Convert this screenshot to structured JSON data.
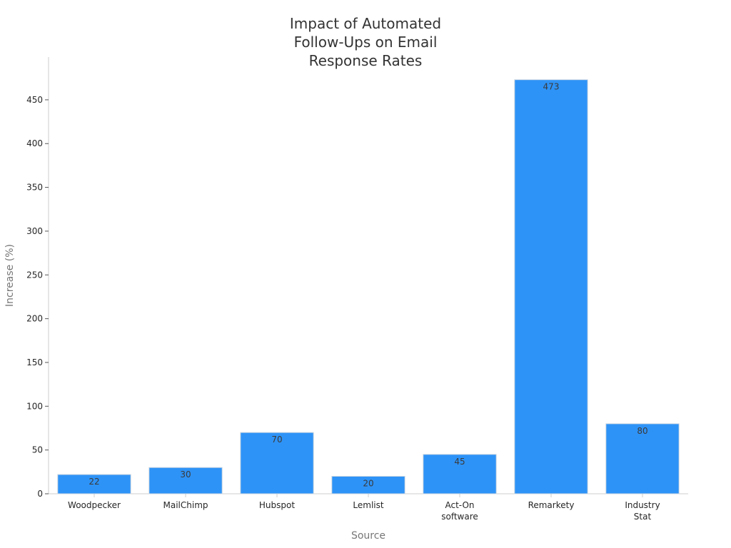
{
  "chart_data": {
    "type": "bar",
    "title_lines": [
      "Impact of Automated",
      "Follow-Ups on Email",
      "Response Rates"
    ],
    "xlabel": "Source",
    "ylabel": "Increase (%)",
    "categories": [
      [
        "Woodpecker"
      ],
      [
        "MailChimp"
      ],
      [
        "Hubspot"
      ],
      [
        "Lemlist"
      ],
      [
        "Act-On",
        "software"
      ],
      [
        "Remarkety"
      ],
      [
        "Industry",
        "Stat"
      ]
    ],
    "values": [
      22,
      30,
      70,
      20,
      45,
      473,
      80
    ],
    "data_labels": [
      "22",
      "30",
      "70",
      "20",
      "45",
      "473",
      "80"
    ],
    "yticks": [
      0,
      50,
      100,
      150,
      200,
      250,
      300,
      350,
      400,
      450
    ],
    "ylim": [
      0,
      496
    ],
    "grid": false,
    "bar_color": "#2e93f7",
    "bar_edge_color": "#d0d8e2"
  }
}
